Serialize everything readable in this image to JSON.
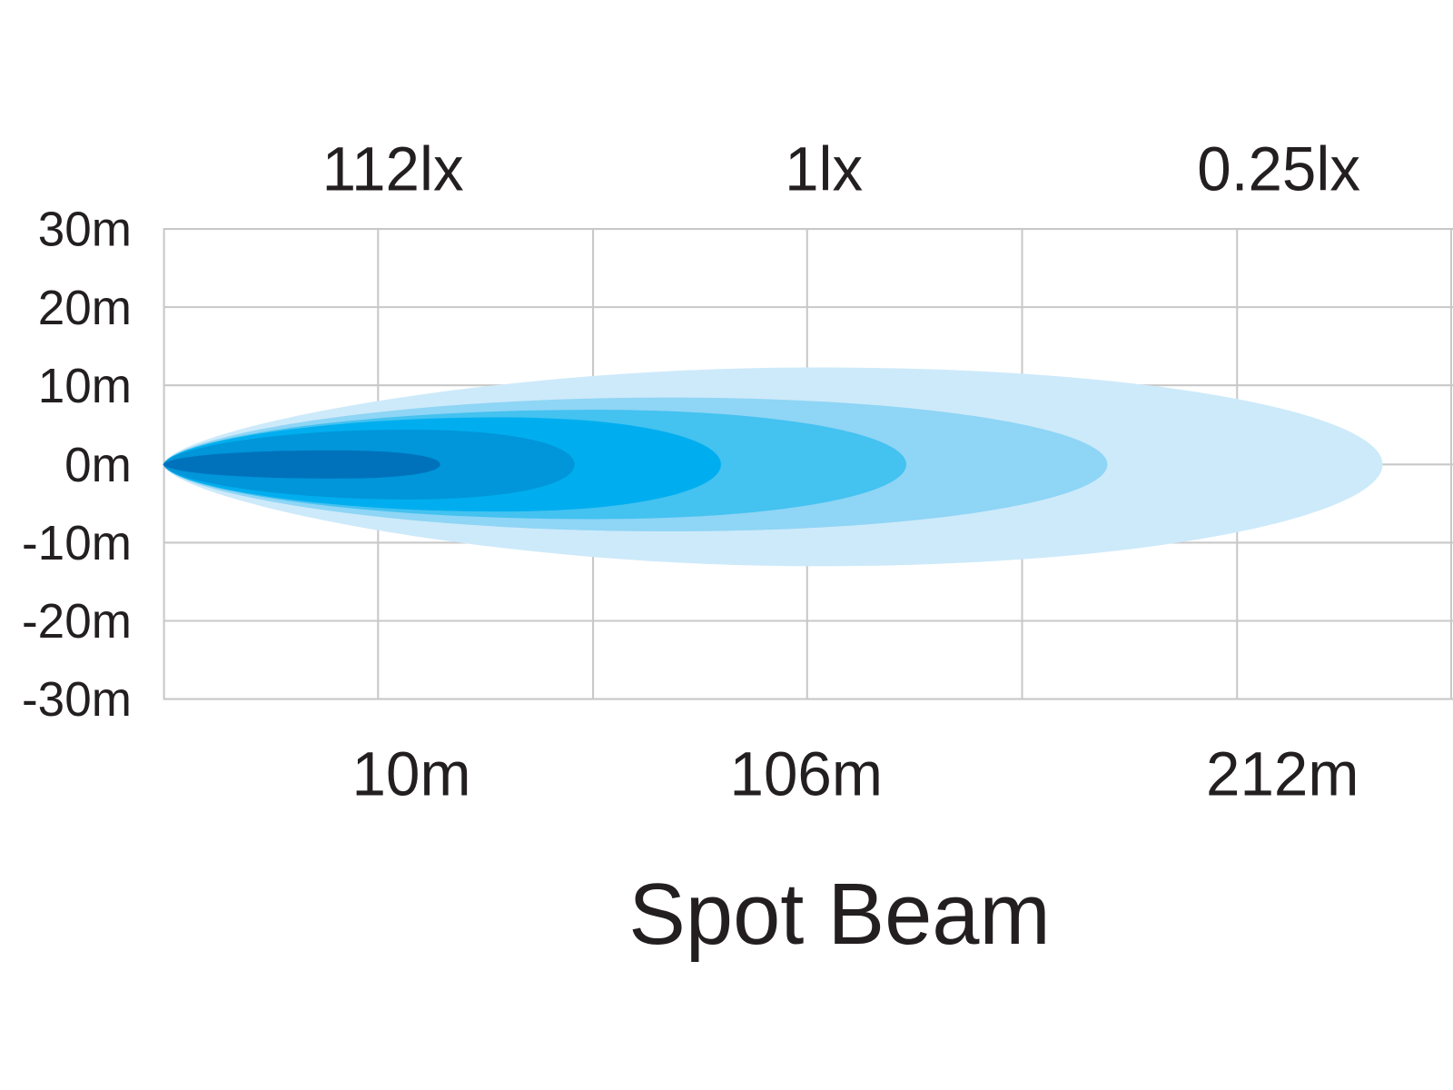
{
  "lux_labels": [
    "112lx",
    "1lx",
    "0.25lx"
  ],
  "y_labels": [
    "30m",
    "20m",
    "10m",
    "0m",
    "-10m",
    "-20m",
    "-30m"
  ],
  "x_labels": [
    "10m",
    "106m",
    "212m"
  ],
  "title": "Spot Beam"
}
